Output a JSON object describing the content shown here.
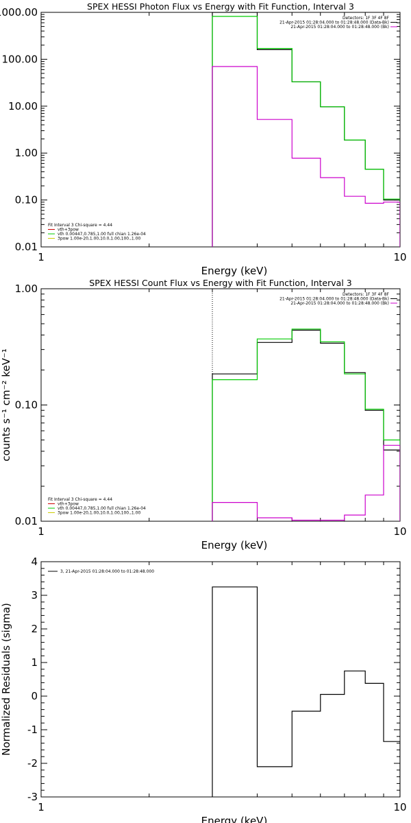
{
  "chart_data": [
    {
      "type": "line",
      "title": "SPEX HESSI Photon Flux vs Energy with Fit Function, Interval 3",
      "xlabel": "Energy (keV)",
      "ylabel": "",
      "xscale": "log",
      "yscale": "log",
      "xlim": [
        1,
        10
      ],
      "ylim": [
        0.01,
        1000
      ],
      "xticks": [
        "1",
        "10"
      ],
      "yticks": [
        "0.01",
        "0.10",
        "1.00",
        "10.00",
        "100.00",
        "1000.00"
      ],
      "header_lines": [
        "Detectors: 1F 3F 4F 8F",
        "21-Apr-2015 01:28:04.000 to 01:28:48.000 (Data-Bk)",
        "21-Apr-2015 01:28:04.000 to 01:28:48.000 (Bk)"
      ],
      "fit_text": [
        "Fit Interval 3   Chi-square = 4.44",
        "vth+3pow",
        "vth 0.00447,0.785,1.00  full chian 1.26e-04",
        "3pow 1.00e-20,1.00,10.0,1.00,100.,1.00"
      ],
      "edges": [
        3.0,
        4.0,
        5.0,
        6.0,
        7.0,
        8.0,
        9.0,
        10.0
      ],
      "series": [
        {
          "color": "#000000",
          "values": [
            1000,
            160,
            33,
            9.7,
            1.9,
            0.45,
            0.1
          ]
        },
        {
          "color": "#00cc00",
          "values": [
            820,
            170,
            33,
            9.7,
            1.9,
            0.45,
            0.105
          ]
        },
        {
          "color": "#cc00cc",
          "values": [
            70,
            5.2,
            0.78,
            0.3,
            0.12,
            0.085,
            0.09
          ]
        }
      ],
      "vline_x": 3.0
    },
    {
      "type": "line",
      "title": "SPEX HESSI Count Flux vs Energy with Fit Function, Interval 3",
      "xlabel": "Energy (keV)",
      "ylabel": "counts s⁻¹ cm⁻² keV⁻¹",
      "xscale": "log",
      "yscale": "log",
      "xlim": [
        1,
        10
      ],
      "ylim": [
        0.01,
        1.0
      ],
      "xticks": [
        "1",
        "10"
      ],
      "yticks": [
        "0.01",
        "0.10",
        "1.00"
      ],
      "header_lines": [
        "Detectors: 1F 3F 4F 8F",
        "21-Apr-2015 01:28:04.000 to 01:28:48.000 (Data-Bk)",
        "21-Apr-2015 01:28:04.000 to 01:28:48.000 (Bk)"
      ],
      "fit_text": [
        "Fit Interval 3   Chi-square = 4.44",
        "vth+3pow",
        "vth 0.00447,0.785,1.00  full chian 1.26e-04",
        "3pow 1.00e-20,1.00,10.0,1.00,100.,1.00"
      ],
      "edges": [
        3.0,
        4.0,
        5.0,
        6.0,
        7.0,
        8.0,
        9.0,
        10.0
      ],
      "series": [
        {
          "color": "#000000",
          "values": [
            0.185,
            0.345,
            0.44,
            0.34,
            0.19,
            0.09,
            0.041
          ]
        },
        {
          "color": "#00cc00",
          "values": [
            0.165,
            0.37,
            0.45,
            0.35,
            0.185,
            0.092,
            0.05
          ]
        },
        {
          "color": "#cc00cc",
          "values": [
            0.0145,
            0.0107,
            0.0102,
            0.0102,
            0.0113,
            0.0168,
            0.045
          ]
        }
      ],
      "vline_x": 3.0
    },
    {
      "type": "line",
      "title": "",
      "xlabel": "Energy (keV)",
      "ylabel": "Normalized Residuals (sigma)",
      "xscale": "log",
      "yscale": "linear",
      "xlim": [
        1,
        10
      ],
      "ylim": [
        -3,
        4
      ],
      "xticks": [
        "1",
        "10"
      ],
      "yticks": [
        "-3",
        "-2",
        "-1",
        "0",
        "1",
        "2",
        "3",
        "4"
      ],
      "legend": "3, 21-Apr-2015 01:28:04.000 to 01:28:48.000",
      "edges": [
        3.0,
        4.0,
        5.0,
        6.0,
        7.0,
        8.0,
        9.0,
        10.0
      ],
      "series": [
        {
          "color": "#000000",
          "values": [
            3.25,
            -2.1,
            -0.45,
            0.05,
            0.75,
            0.38,
            -1.35
          ]
        }
      ]
    }
  ]
}
